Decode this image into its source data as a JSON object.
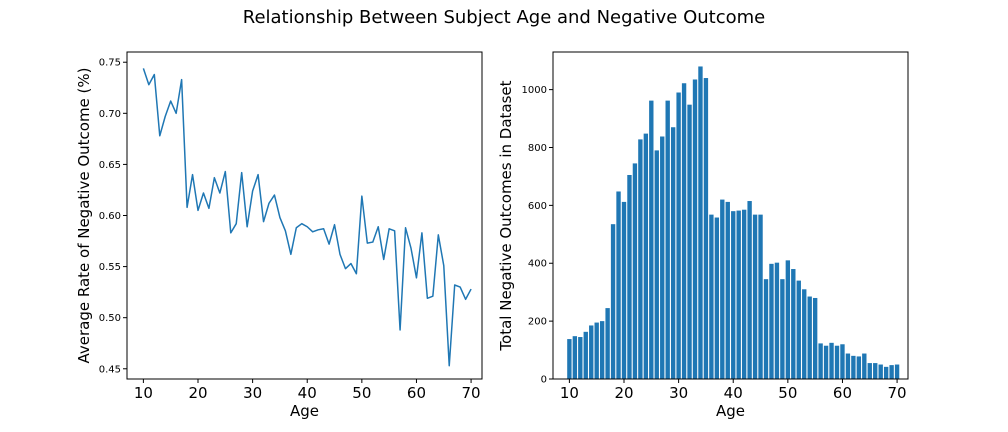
{
  "figure": {
    "title": "Relationship Between Subject Age and Negative Outcome"
  },
  "chart_data": [
    {
      "type": "line",
      "xlabel": "Age",
      "ylabel": "Average Rate of Negative Outcome (%)",
      "xlim": [
        7,
        72
      ],
      "ylim": [
        0.44,
        0.76
      ],
      "xticks": [
        10,
        20,
        30,
        40,
        50,
        60,
        70
      ],
      "yticks": [
        0.45,
        0.5,
        0.55,
        0.6,
        0.65,
        0.7,
        0.75
      ],
      "ytick_labels": [
        "0.45",
        "0.50",
        "0.55",
        "0.60",
        "0.65",
        "0.70",
        "0.75"
      ],
      "grid": false,
      "color": "#1f77b4",
      "x": [
        10,
        11,
        12,
        13,
        14,
        15,
        16,
        17,
        18,
        19,
        20,
        21,
        22,
        23,
        24,
        25,
        26,
        27,
        28,
        29,
        30,
        31,
        32,
        33,
        34,
        35,
        36,
        37,
        38,
        39,
        40,
        41,
        42,
        43,
        44,
        45,
        46,
        47,
        48,
        49,
        50,
        51,
        52,
        53,
        54,
        55,
        56,
        57,
        58,
        59,
        60,
        61,
        62,
        63,
        64,
        65,
        66,
        67,
        68,
        69,
        70
      ],
      "y": [
        0.744,
        0.728,
        0.738,
        0.678,
        0.697,
        0.712,
        0.7,
        0.733,
        0.608,
        0.64,
        0.605,
        0.622,
        0.607,
        0.637,
        0.622,
        0.643,
        0.583,
        0.592,
        0.642,
        0.589,
        0.624,
        0.64,
        0.594,
        0.612,
        0.62,
        0.598,
        0.585,
        0.562,
        0.588,
        0.592,
        0.589,
        0.584,
        0.586,
        0.587,
        0.572,
        0.591,
        0.562,
        0.548,
        0.553,
        0.543,
        0.619,
        0.573,
        0.574,
        0.589,
        0.557,
        0.587,
        0.585,
        0.488,
        0.588,
        0.568,
        0.539,
        0.583,
        0.519,
        0.521,
        0.581,
        0.551,
        0.453,
        0.532,
        0.53,
        0.518,
        0.528
      ]
    },
    {
      "type": "bar",
      "xlabel": "Age",
      "ylabel": "Total Negative Outcomes in Dataset",
      "xlim": [
        7,
        72
      ],
      "ylim": [
        0,
        1130
      ],
      "xticks": [
        10,
        20,
        30,
        40,
        50,
        60,
        70
      ],
      "yticks": [
        0,
        200,
        400,
        600,
        800,
        1000
      ],
      "ytick_labels": [
        "0",
        "200",
        "400",
        "600",
        "800",
        "1000"
      ],
      "grid": false,
      "color": "#1f77b4",
      "x": [
        10,
        11,
        12,
        13,
        14,
        15,
        16,
        17,
        18,
        19,
        20,
        21,
        22,
        23,
        24,
        25,
        26,
        27,
        28,
        29,
        30,
        31,
        32,
        33,
        34,
        35,
        36,
        37,
        38,
        39,
        40,
        41,
        42,
        43,
        44,
        45,
        46,
        47,
        48,
        49,
        50,
        51,
        52,
        53,
        54,
        55,
        56,
        57,
        58,
        59,
        60,
        61,
        62,
        63,
        64,
        65,
        66,
        67,
        68,
        69,
        70
      ],
      "values": [
        138,
        148,
        145,
        163,
        185,
        195,
        200,
        245,
        535,
        648,
        612,
        705,
        745,
        828,
        848,
        962,
        790,
        838,
        962,
        870,
        990,
        1022,
        948,
        1035,
        1080,
        1040,
        568,
        558,
        620,
        612,
        580,
        582,
        585,
        615,
        568,
        568,
        345,
        398,
        402,
        345,
        410,
        380,
        340,
        310,
        285,
        280,
        123,
        115,
        125,
        115,
        120,
        88,
        80,
        78,
        88,
        55,
        55,
        50,
        42,
        48,
        50
      ]
    }
  ]
}
